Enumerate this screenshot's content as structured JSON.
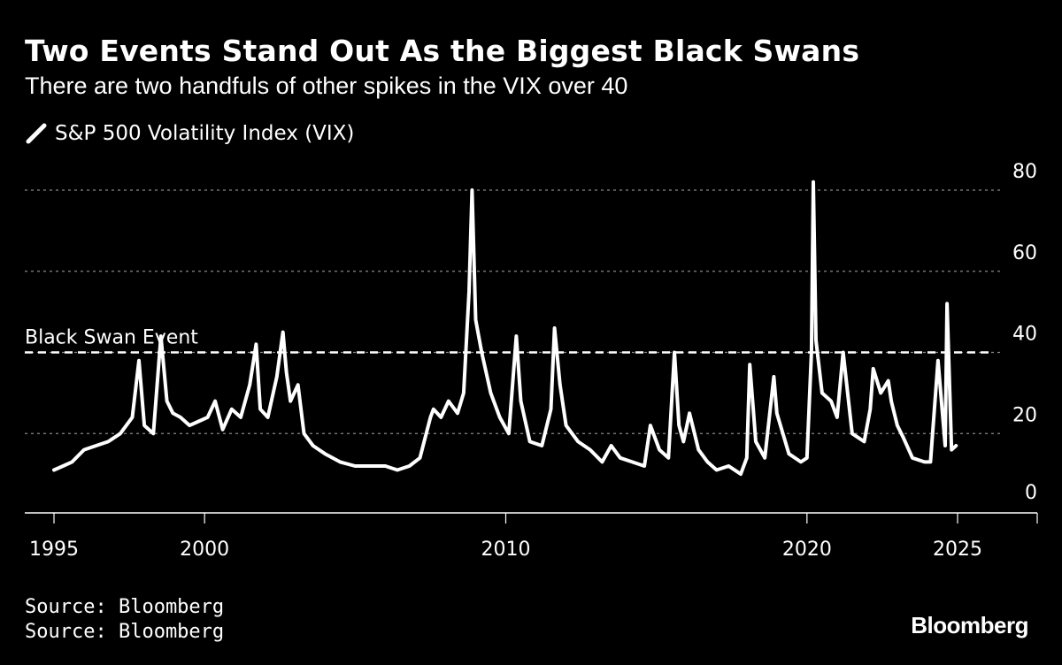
{
  "title": "Two Events Stand Out As the Biggest Black Swans",
  "subtitle": "There are two handfuls of other spikes in the VIX over 40",
  "legend": {
    "label": "S&P 500 Volatility Index (VIX)",
    "color": "#ffffff"
  },
  "source_lines": [
    "Source: Bloomberg",
    "Source: Bloomberg"
  ],
  "brand": "Bloomberg",
  "colors": {
    "background": "#000000",
    "line": "#ffffff",
    "grid": "#8a8a8a",
    "axis": "#ffffff"
  },
  "chart_data": {
    "type": "line",
    "title": "Two Events Stand Out As the Biggest Black Swans",
    "subtitle": "There are two handfuls of other spikes in the VIX over 40",
    "xlabel": "",
    "ylabel": "",
    "xlim": [
      1995,
      2028
    ],
    "ylim": [
      0,
      80
    ],
    "x_ticks": [
      1995,
      2000,
      2010,
      2020,
      2025
    ],
    "y_ticks": [
      0,
      20,
      40,
      60,
      80
    ],
    "grid": true,
    "y_axis_position": "right",
    "threshold": {
      "value": 40,
      "label": "Black Swan Event"
    },
    "series": [
      {
        "name": "S&P 500 Volatility Index (VIX)",
        "x": [
          1995.0,
          1995.3,
          1995.6,
          1996.0,
          1996.4,
          1996.8,
          1997.2,
          1997.6,
          1997.82,
          1998.0,
          1998.3,
          1998.55,
          1998.75,
          1998.95,
          1999.2,
          1999.5,
          1999.8,
          2000.1,
          2000.35,
          2000.6,
          2000.9,
          2001.2,
          2001.5,
          2001.71,
          2001.85,
          2002.1,
          2002.4,
          2002.6,
          2002.72,
          2002.85,
          2003.1,
          2003.3,
          2003.6,
          2004.0,
          2004.5,
          2005.0,
          2005.5,
          2006.0,
          2006.4,
          2006.8,
          2007.15,
          2007.5,
          2007.6,
          2007.85,
          2008.1,
          2008.4,
          2008.6,
          2008.78,
          2008.88,
          2009.0,
          2009.2,
          2009.5,
          2009.8,
          2010.1,
          2010.35,
          2010.5,
          2010.8,
          2011.2,
          2011.5,
          2011.62,
          2011.8,
          2012.0,
          2012.4,
          2012.8,
          2013.2,
          2013.5,
          2013.8,
          2014.2,
          2014.6,
          2014.8,
          2015.1,
          2015.4,
          2015.6,
          2015.75,
          2015.9,
          2016.1,
          2016.4,
          2016.7,
          2017.0,
          2017.4,
          2017.8,
          2018.0,
          2018.1,
          2018.3,
          2018.6,
          2018.9,
          2019.0,
          2019.4,
          2019.8,
          2020.0,
          2020.15,
          2020.21,
          2020.3,
          2020.5,
          2020.8,
          2021.0,
          2021.2,
          2021.5,
          2021.9,
          2022.1,
          2022.2,
          2022.45,
          2022.7,
          2022.8,
          2023.0,
          2023.2,
          2023.5,
          2023.9,
          2024.1,
          2024.35,
          2024.59,
          2024.65,
          2024.8,
          2024.95
        ],
        "values": [
          11,
          12,
          13,
          16,
          17,
          18,
          20,
          24,
          38,
          22,
          20,
          44,
          28,
          25,
          24,
          22,
          23,
          24,
          28,
          21,
          26,
          24,
          32,
          42,
          26,
          24,
          34,
          45,
          35,
          28,
          32,
          20,
          17,
          15,
          13,
          12,
          12,
          12,
          11,
          12,
          14,
          24,
          26,
          24,
          28,
          25,
          30,
          55,
          80,
          48,
          40,
          30,
          24,
          20,
          44,
          28,
          18,
          17,
          26,
          46,
          32,
          22,
          18,
          16,
          13,
          17,
          14,
          13,
          12,
          22,
          16,
          14,
          40,
          22,
          18,
          25,
          16,
          13,
          11,
          12,
          10,
          14,
          37,
          18,
          14,
          34,
          25,
          15,
          13,
          14,
          40,
          82,
          43,
          30,
          28,
          24,
          40,
          20,
          18,
          26,
          36,
          30,
          33,
          28,
          22,
          19,
          14,
          13,
          13,
          38,
          17,
          52,
          16,
          17
        ]
      }
    ]
  }
}
